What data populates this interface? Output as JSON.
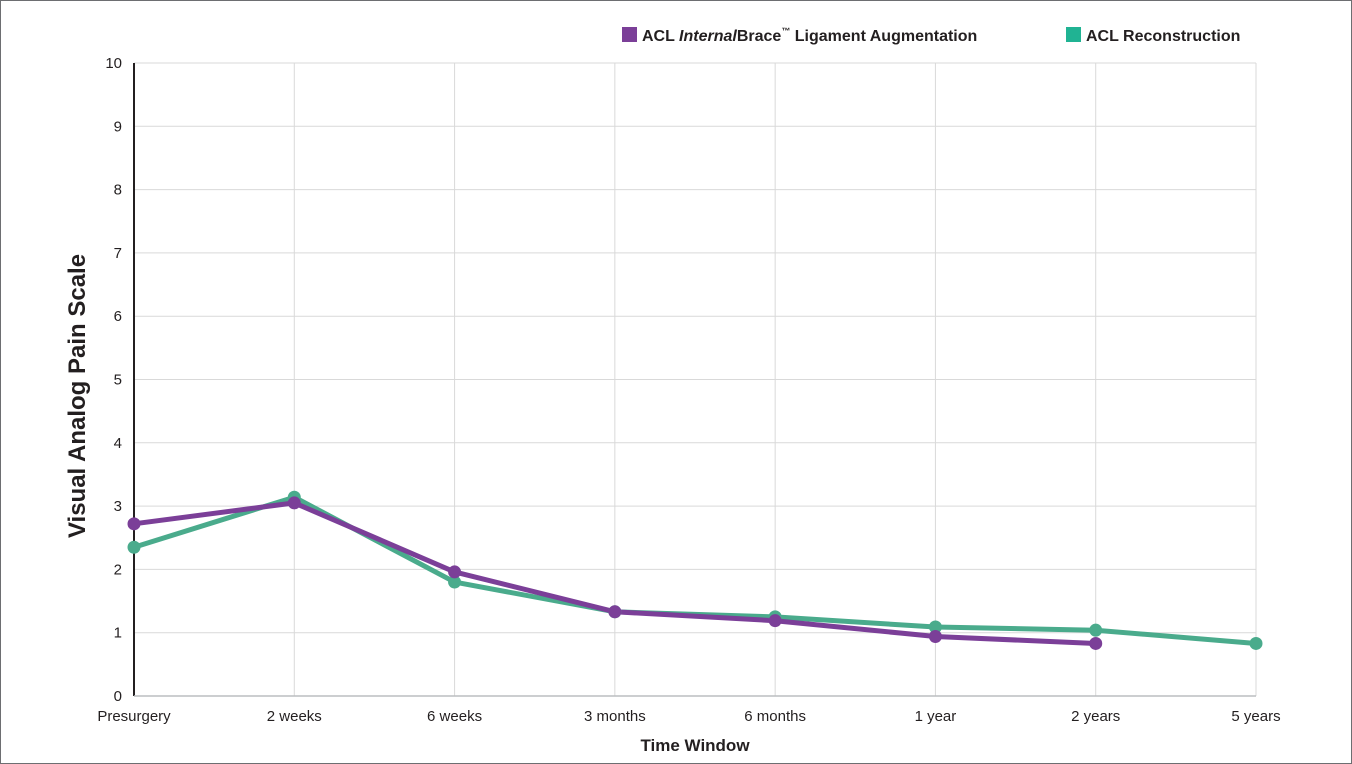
{
  "chart_data": {
    "type": "line",
    "categories": [
      "Presurgery",
      "2 weeks",
      "6 weeks",
      "3 months",
      "6 months",
      "1 year",
      "2 years",
      "5 years"
    ],
    "xlabel": "Time Window",
    "ylabel": "Visual Analog Pain Scale",
    "ylim": [
      0,
      10
    ],
    "yticks": [
      "0",
      "1",
      "2",
      "3",
      "4",
      "5",
      "6",
      "7",
      "8",
      "9",
      "10"
    ],
    "grid": true,
    "legend_position": "top-right",
    "series": [
      {
        "name": "ACL InternalBrace™ Ligament Augmentation",
        "legend_parts": {
          "prefix": "ACL ",
          "italic": "Internal",
          "brand": "Brace",
          "tm": "™",
          "suffix": " Ligament Augmentation"
        },
        "color": "#7b3f98",
        "values": [
          2.72,
          3.05,
          1.96,
          1.33,
          1.19,
          0.94,
          0.83,
          null
        ]
      },
      {
        "name": "ACL Reconstruction",
        "legend_parts": {
          "prefix": "ACL Reconstruction"
        },
        "color": "#4aab8c",
        "legend_color": "#20b393",
        "values": [
          2.35,
          3.14,
          1.8,
          1.33,
          1.25,
          1.09,
          1.04,
          0.83
        ]
      }
    ]
  }
}
